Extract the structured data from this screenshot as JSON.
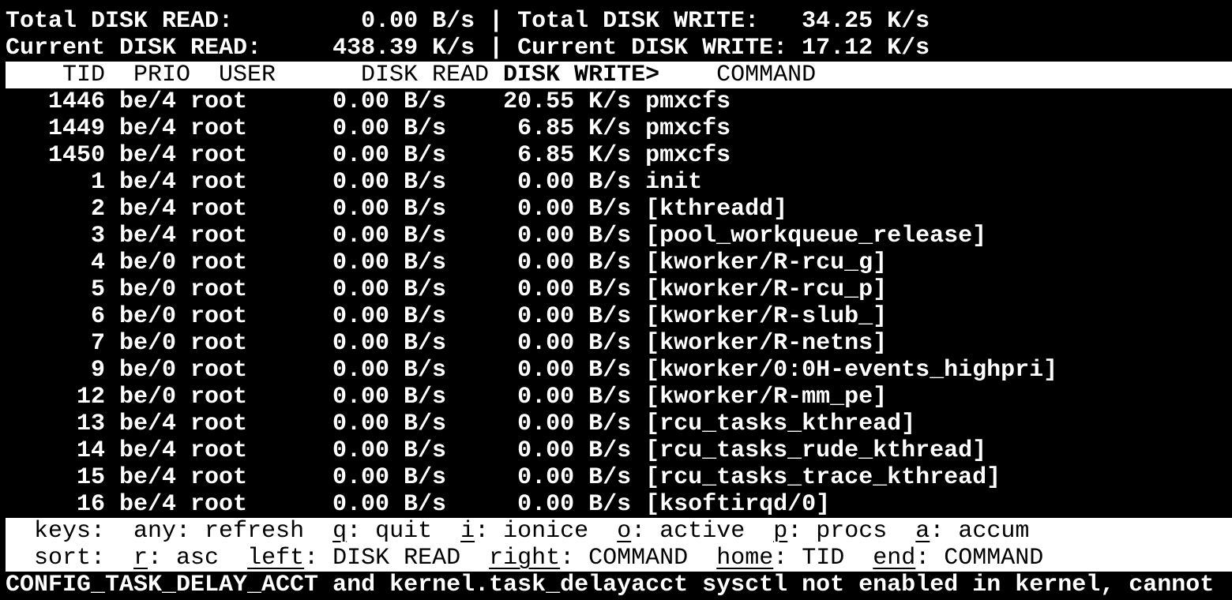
{
  "app": {
    "name": "iotop"
  },
  "colors": {
    "background": "#000000",
    "foreground": "#ffffff",
    "reverse_bg": "#ffffff",
    "reverse_fg": "#000000"
  },
  "summary": {
    "total_read_label": "Total DISK READ:",
    "total_read_value": "0.00 B/s",
    "total_write_label": "Total DISK WRITE:",
    "total_write_value": "34.25 K/s",
    "current_read_label": "Current DISK READ:",
    "current_read_value": "438.39 K/s",
    "current_write_label": "Current DISK WRITE:",
    "current_write_value": "17.12 K/s",
    "separator": "|"
  },
  "table": {
    "headers": {
      "tid": "TID",
      "prio": "PRIO",
      "user": "USER",
      "disk_read": "DISK READ",
      "disk_write": "DISK WRITE>",
      "command": "COMMAND"
    },
    "sorted_by": "DISK WRITE",
    "sort_indicator": ">",
    "rows": [
      {
        "tid": "1446",
        "prio": "be/4",
        "user": "root",
        "disk_read": "0.00 B/s",
        "disk_write": "20.55 K/s",
        "command": "pmxcfs"
      },
      {
        "tid": "1449",
        "prio": "be/4",
        "user": "root",
        "disk_read": "0.00 B/s",
        "disk_write": "6.85 K/s",
        "command": "pmxcfs"
      },
      {
        "tid": "1450",
        "prio": "be/4",
        "user": "root",
        "disk_read": "0.00 B/s",
        "disk_write": "6.85 K/s",
        "command": "pmxcfs"
      },
      {
        "tid": "1",
        "prio": "be/4",
        "user": "root",
        "disk_read": "0.00 B/s",
        "disk_write": "0.00 B/s",
        "command": "init"
      },
      {
        "tid": "2",
        "prio": "be/4",
        "user": "root",
        "disk_read": "0.00 B/s",
        "disk_write": "0.00 B/s",
        "command": "[kthreadd]"
      },
      {
        "tid": "3",
        "prio": "be/4",
        "user": "root",
        "disk_read": "0.00 B/s",
        "disk_write": "0.00 B/s",
        "command": "[pool_workqueue_release]"
      },
      {
        "tid": "4",
        "prio": "be/0",
        "user": "root",
        "disk_read": "0.00 B/s",
        "disk_write": "0.00 B/s",
        "command": "[kworker/R-rcu_g]"
      },
      {
        "tid": "5",
        "prio": "be/0",
        "user": "root",
        "disk_read": "0.00 B/s",
        "disk_write": "0.00 B/s",
        "command": "[kworker/R-rcu_p]"
      },
      {
        "tid": "6",
        "prio": "be/0",
        "user": "root",
        "disk_read": "0.00 B/s",
        "disk_write": "0.00 B/s",
        "command": "[kworker/R-slub_]"
      },
      {
        "tid": "7",
        "prio": "be/0",
        "user": "root",
        "disk_read": "0.00 B/s",
        "disk_write": "0.00 B/s",
        "command": "[kworker/R-netns]"
      },
      {
        "tid": "9",
        "prio": "be/0",
        "user": "root",
        "disk_read": "0.00 B/s",
        "disk_write": "0.00 B/s",
        "command": "[kworker/0:0H-events_highpri]"
      },
      {
        "tid": "12",
        "prio": "be/0",
        "user": "root",
        "disk_read": "0.00 B/s",
        "disk_write": "0.00 B/s",
        "command": "[kworker/R-mm_pe]"
      },
      {
        "tid": "13",
        "prio": "be/4",
        "user": "root",
        "disk_read": "0.00 B/s",
        "disk_write": "0.00 B/s",
        "command": "[rcu_tasks_kthread]"
      },
      {
        "tid": "14",
        "prio": "be/4",
        "user": "root",
        "disk_read": "0.00 B/s",
        "disk_write": "0.00 B/s",
        "command": "[rcu_tasks_rude_kthread]"
      },
      {
        "tid": "15",
        "prio": "be/4",
        "user": "root",
        "disk_read": "0.00 B/s",
        "disk_write": "0.00 B/s",
        "command": "[rcu_tasks_trace_kthread]"
      },
      {
        "tid": "16",
        "prio": "be/4",
        "user": "root",
        "disk_read": "0.00 B/s",
        "disk_write": "0.00 B/s",
        "command": "[ksoftirqd/0]"
      }
    ]
  },
  "help": {
    "keys_label": "keys:",
    "key_separator": ": ",
    "keys_items": [
      {
        "key": "any",
        "action": "refresh",
        "underlined": false
      },
      {
        "key": "q",
        "action": "quit",
        "underlined": true
      },
      {
        "key": "i",
        "action": "ionice",
        "underlined": true
      },
      {
        "key": "o",
        "action": "active",
        "underlined": true
      },
      {
        "key": "p",
        "action": "procs",
        "underlined": true
      },
      {
        "key": "a",
        "action": "accum",
        "underlined": true
      }
    ],
    "sort_label": "sort:",
    "sort_items": [
      {
        "key": "r",
        "action": "asc",
        "underlined": true
      },
      {
        "key": "left",
        "action": "DISK READ",
        "underlined": true
      },
      {
        "key": "right",
        "action": "COMMAND",
        "underlined": true
      },
      {
        "key": "home",
        "action": "TID",
        "underlined": true
      },
      {
        "key": "end",
        "action": "COMMAND",
        "underlined": true
      }
    ]
  },
  "status_bar": {
    "message": "CONFIG_TASK_DELAY_ACCT and kernel.task_delayacct sysctl not enabled in kernel, cannot"
  }
}
